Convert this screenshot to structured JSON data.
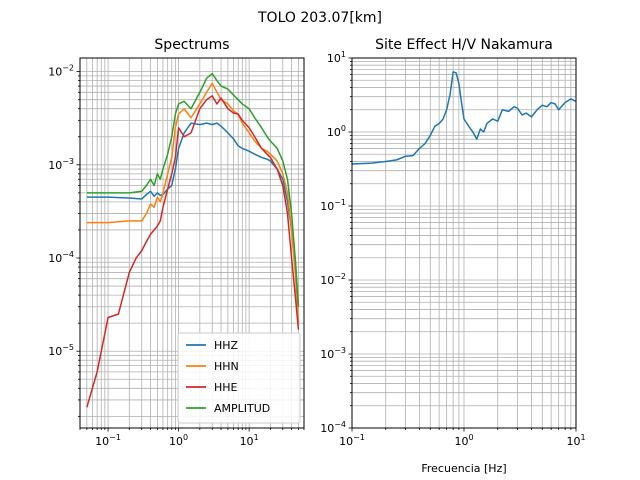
{
  "figure_title": "TOLO 203.07[km]",
  "chart_data": [
    {
      "type": "line",
      "title": "Spectrums",
      "xlabel": "",
      "ylabel": "",
      "xscale": "log",
      "yscale": "log",
      "xlim": [
        0.04,
        60
      ],
      "ylim": [
        1.5e-06,
        0.014
      ],
      "grid": true,
      "legend_position": "lower-right",
      "x_ticks": [
        {
          "value": 0.1,
          "base": "10",
          "exp": "−1"
        },
        {
          "value": 1,
          "base": "10",
          "exp": "0"
        },
        {
          "value": 10,
          "base": "10",
          "exp": "1"
        }
      ],
      "y_ticks": [
        {
          "value": 1e-05,
          "base": "10",
          "exp": "−5"
        },
        {
          "value": 0.0001,
          "base": "10",
          "exp": "−4"
        },
        {
          "value": 0.001,
          "base": "10",
          "exp": "−3"
        },
        {
          "value": 0.01,
          "base": "10",
          "exp": "−2"
        }
      ],
      "series": [
        {
          "name": "HHZ",
          "color": "#1f77b4",
          "x": [
            0.05,
            0.1,
            0.2,
            0.3,
            0.35,
            0.4,
            0.45,
            0.5,
            0.55,
            0.6,
            0.7,
            0.8,
            0.9,
            1.0,
            1.2,
            1.5,
            2.0,
            2.5,
            3.0,
            3.5,
            4.0,
            5.0,
            6.0,
            7.0,
            8.0,
            10,
            12,
            15,
            18,
            20,
            25,
            30,
            35,
            40,
            45,
            50
          ],
          "y": [
            0.00045,
            0.00045,
            0.00044,
            0.00043,
            0.00048,
            0.00052,
            0.00046,
            0.0005,
            0.00047,
            0.00048,
            0.00055,
            0.0006,
            0.0009,
            0.0015,
            0.0022,
            0.0028,
            0.0027,
            0.0028,
            0.0027,
            0.0028,
            0.0026,
            0.0022,
            0.0019,
            0.0016,
            0.0015,
            0.0014,
            0.0013,
            0.0012,
            0.00115,
            0.0011,
            0.0009,
            0.0007,
            0.0004,
            0.0002,
            0.0001,
            3e-05
          ]
        },
        {
          "name": "HHN",
          "color": "#ff7f0e",
          "x": [
            0.05,
            0.1,
            0.2,
            0.3,
            0.35,
            0.4,
            0.45,
            0.5,
            0.55,
            0.6,
            0.7,
            0.8,
            0.9,
            1.0,
            1.2,
            1.5,
            2.0,
            2.5,
            3.0,
            3.5,
            4.0,
            5.0,
            6.0,
            7.0,
            8.0,
            10,
            12,
            15,
            18,
            20,
            25,
            30,
            35,
            40,
            45,
            50
          ],
          "y": [
            0.00024,
            0.00024,
            0.00025,
            0.00025,
            0.0003,
            0.00038,
            0.00035,
            0.00045,
            0.0004,
            0.0005,
            0.0008,
            0.0012,
            0.0025,
            0.0035,
            0.004,
            0.0032,
            0.0045,
            0.006,
            0.0075,
            0.006,
            0.005,
            0.0045,
            0.0038,
            0.0035,
            0.0028,
            0.0022,
            0.0018,
            0.0015,
            0.0014,
            0.0013,
            0.0011,
            0.0008,
            0.0005,
            0.0002,
            7e-05,
            2e-05
          ]
        },
        {
          "name": "HHE",
          "color": "#d62728",
          "x": [
            0.05,
            0.07,
            0.1,
            0.14,
            0.2,
            0.25,
            0.3,
            0.35,
            0.4,
            0.45,
            0.5,
            0.55,
            0.6,
            0.7,
            0.8,
            0.9,
            1.0,
            1.2,
            1.5,
            2.0,
            2.5,
            3.0,
            3.5,
            4.0,
            5.0,
            6.0,
            7.0,
            8.0,
            10,
            12,
            15,
            18,
            20,
            25,
            30,
            35,
            40,
            45,
            50
          ],
          "y": [
            2.5e-06,
            6e-06,
            2.3e-05,
            2.5e-05,
            7e-05,
            0.0001,
            0.00012,
            0.00015,
            0.00018,
            0.0002,
            0.00022,
            0.00025,
            0.00035,
            0.00055,
            0.0008,
            0.0012,
            0.0025,
            0.002,
            0.0022,
            0.004,
            0.005,
            0.0055,
            0.0045,
            0.0052,
            0.004,
            0.0036,
            0.0035,
            0.003,
            0.0025,
            0.002,
            0.0015,
            0.0013,
            0.0012,
            0.0009,
            0.0006,
            0.0003,
            0.0001,
            4e-05,
            1.7e-05
          ]
        },
        {
          "name": "AMPLITUD",
          "color": "#2ca02c",
          "x": [
            0.05,
            0.1,
            0.2,
            0.3,
            0.35,
            0.4,
            0.45,
            0.5,
            0.55,
            0.6,
            0.7,
            0.8,
            0.9,
            1.0,
            1.2,
            1.5,
            2.0,
            2.5,
            3.0,
            3.5,
            4.0,
            5.0,
            6.0,
            7.0,
            8.0,
            10,
            12,
            15,
            18,
            20,
            25,
            30,
            35,
            40,
            45,
            50
          ],
          "y": [
            0.0005,
            0.0005,
            0.0005,
            0.00052,
            0.0006,
            0.0007,
            0.0006,
            0.0008,
            0.0007,
            0.0009,
            0.0013,
            0.002,
            0.0035,
            0.0045,
            0.0048,
            0.004,
            0.006,
            0.0085,
            0.0095,
            0.008,
            0.007,
            0.0065,
            0.0056,
            0.005,
            0.0045,
            0.004,
            0.0032,
            0.0025,
            0.002,
            0.0018,
            0.0015,
            0.0011,
            0.0007,
            0.0003,
            0.0001,
            3e-05
          ]
        }
      ]
    },
    {
      "type": "line",
      "title": "Site Effect H/V Nakamura",
      "xlabel": "Frecuencia [Hz]",
      "ylabel": "",
      "xscale": "log",
      "yscale": "log",
      "xlim": [
        0.1,
        10
      ],
      "ylim": [
        0.0001,
        10
      ],
      "grid": true,
      "x_ticks": [
        {
          "value": 0.1,
          "base": "10",
          "exp": "−1"
        },
        {
          "value": 1,
          "base": "10",
          "exp": "0"
        },
        {
          "value": 10,
          "base": "10",
          "exp": "1"
        }
      ],
      "y_ticks": [
        {
          "value": 0.0001,
          "base": "10",
          "exp": "−4"
        },
        {
          "value": 0.001,
          "base": "10",
          "exp": "−3"
        },
        {
          "value": 0.01,
          "base": "10",
          "exp": "−2"
        },
        {
          "value": 0.1,
          "base": "10",
          "exp": "−1"
        },
        {
          "value": 1,
          "base": "10",
          "exp": "0"
        },
        {
          "value": 10,
          "base": "10",
          "exp": "1"
        }
      ],
      "series": [
        {
          "name": "",
          "color": "#1f77b4",
          "x": [
            0.1,
            0.15,
            0.2,
            0.25,
            0.3,
            0.35,
            0.4,
            0.45,
            0.5,
            0.55,
            0.6,
            0.65,
            0.7,
            0.75,
            0.8,
            0.85,
            0.9,
            0.95,
            1.0,
            1.1,
            1.2,
            1.3,
            1.4,
            1.5,
            1.6,
            1.8,
            2.0,
            2.2,
            2.5,
            2.8,
            3.0,
            3.3,
            3.6,
            4.0,
            4.5,
            5.0,
            5.5,
            6.0,
            6.5,
            7.0,
            8.0,
            9.0,
            10.0
          ],
          "y": [
            0.37,
            0.38,
            0.4,
            0.42,
            0.47,
            0.48,
            0.6,
            0.7,
            0.9,
            1.2,
            1.3,
            1.5,
            2.0,
            3.2,
            6.5,
            6.3,
            4.5,
            2.5,
            1.5,
            1.2,
            1.0,
            0.8,
            1.1,
            1.0,
            1.3,
            1.5,
            1.4,
            2.0,
            1.9,
            2.2,
            2.1,
            1.7,
            1.8,
            1.6,
            2.0,
            2.3,
            2.2,
            2.5,
            2.4,
            2.0,
            2.5,
            2.8,
            2.6
          ]
        }
      ]
    }
  ]
}
